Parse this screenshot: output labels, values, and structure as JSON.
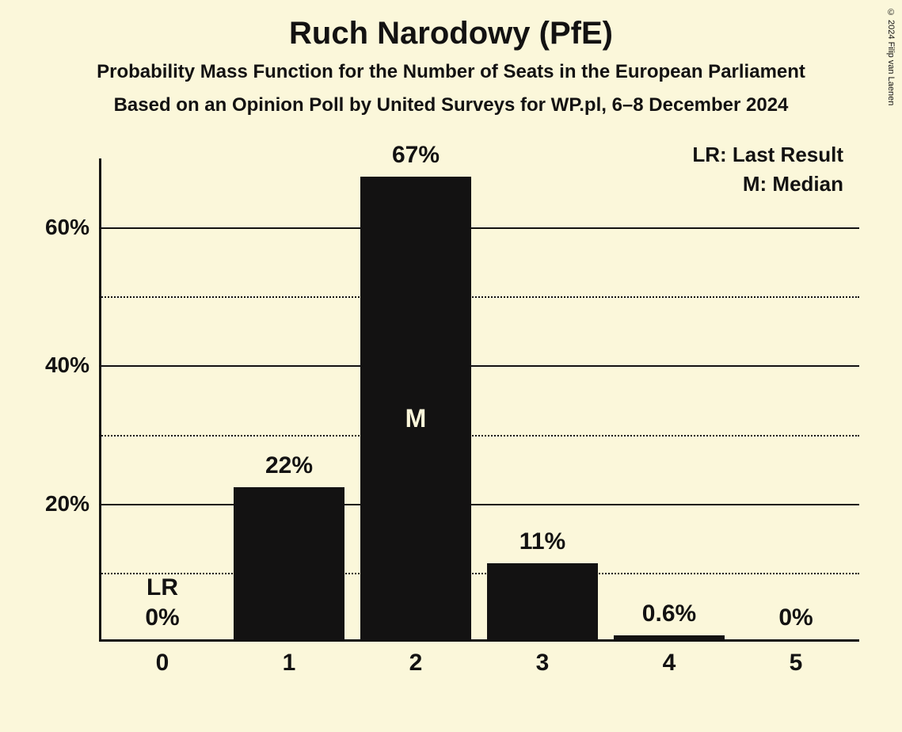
{
  "title": "Ruch Narodowy (PfE)",
  "subtitle1": "Probability Mass Function for the Number of Seats in the European Parliament",
  "subtitle2": "Based on an Opinion Poll by United Surveys for WP.pl, 6–8 December 2024",
  "copyright": "© 2024 Filip van Laenen",
  "legend": {
    "lr": "LR: Last Result",
    "m": "M: Median"
  },
  "chart": {
    "type": "bar",
    "background_color": "#fbf7da",
    "bar_color": "#131212",
    "text_color": "#131212",
    "median_text_color": "#fbf7da",
    "axis_color": "#131212",
    "grid_solid_color": "#131212",
    "grid_dotted_color": "#131212",
    "ylim": [
      0,
      70
    ],
    "y_major_ticks": [
      20,
      40,
      60
    ],
    "y_minor_ticks": [
      10,
      30,
      50
    ],
    "categories": [
      "0",
      "1",
      "2",
      "3",
      "4",
      "5"
    ],
    "values": [
      0,
      22,
      67,
      11,
      0.6,
      0
    ],
    "value_labels": [
      "0%",
      "22%",
      "67%",
      "11%",
      "0.6%",
      "0%"
    ],
    "lr_index": 0,
    "lr_label": "LR",
    "median_index": 2,
    "median_label": "M",
    "bar_width_ratio": 0.88,
    "title_fontsize": 40,
    "subtitle_fontsize": 24,
    "axis_label_fontsize": 28,
    "value_label_fontsize": 30,
    "x_tick_fontsize": 30,
    "legend_fontsize": 26
  }
}
